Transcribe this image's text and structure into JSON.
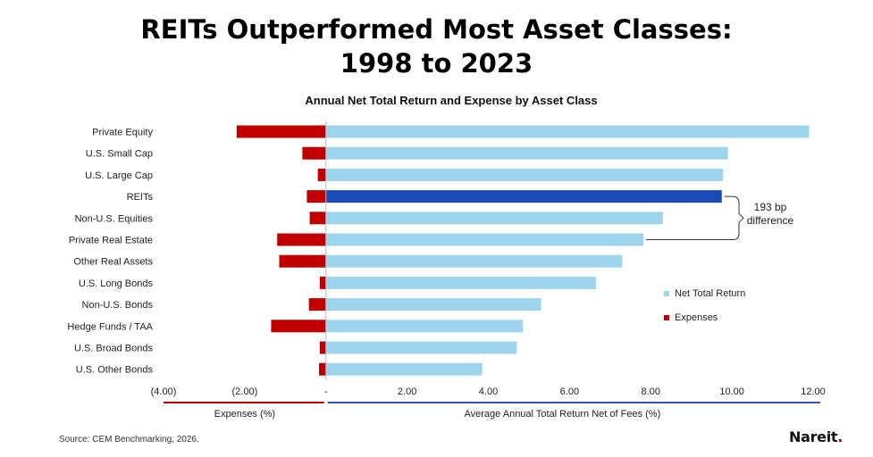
{
  "title_lines": [
    "REITs Outperformed Most Asset Classes:",
    "1998 to 2023"
  ],
  "source": "Source: CEM Benchmarking, 2026.",
  "logo": "Nareit",
  "colors": {
    "net_total_return": "#9ed4ec",
    "reits_highlight": "#1e49b8",
    "expenses": "#c00000",
    "expenses_axis_line": "#c00000",
    "return_axis_line": "#2f55b5"
  },
  "chart_data": {
    "type": "bar",
    "orientation": "horizontal",
    "title": "Annual Net Total Return and Expense by Asset Class",
    "categories": [
      "Private Equity",
      "U.S. Small Cap",
      "U.S. Large Cap",
      "REITs",
      "Non-U.S. Equities",
      "Private Real Estate",
      "Other Real Assets",
      "U.S. Long Bonds",
      "Non-U.S. Bonds",
      "Hedge Funds / TAA",
      "U.S. Broad Bonds",
      "U.S. Other Bonds"
    ],
    "series": [
      {
        "name": "Net Total Return",
        "values": [
          11.9,
          9.9,
          9.78,
          9.75,
          8.3,
          7.82,
          7.3,
          6.65,
          5.3,
          4.85,
          4.7,
          3.85
        ]
      },
      {
        "name": "Expenses",
        "values": [
          -2.2,
          -0.58,
          -0.2,
          -0.47,
          -0.4,
          -1.2,
          -1.15,
          -0.15,
          -0.42,
          -1.35,
          -0.15,
          -0.17
        ]
      }
    ],
    "highlight_category": "REITs",
    "xlim": [
      -4,
      12
    ],
    "xticks": [
      -4,
      -2,
      0,
      2,
      4,
      6,
      8,
      10,
      12
    ],
    "xtick_labels": [
      "(4.00)",
      "(2.00)",
      "-",
      "2.00",
      "4.00",
      "6.00",
      "8.00",
      "10.00",
      "12.00"
    ],
    "xlabel_left": "Expenses (%)",
    "xlabel_right": "Average Annual Total Return Net of Fees (%)",
    "legend_position": "right",
    "annotation": {
      "text_lines": [
        "193 bp",
        "difference"
      ],
      "from_category": "REITs",
      "to_category": "Private Real Estate"
    },
    "grid": false
  }
}
